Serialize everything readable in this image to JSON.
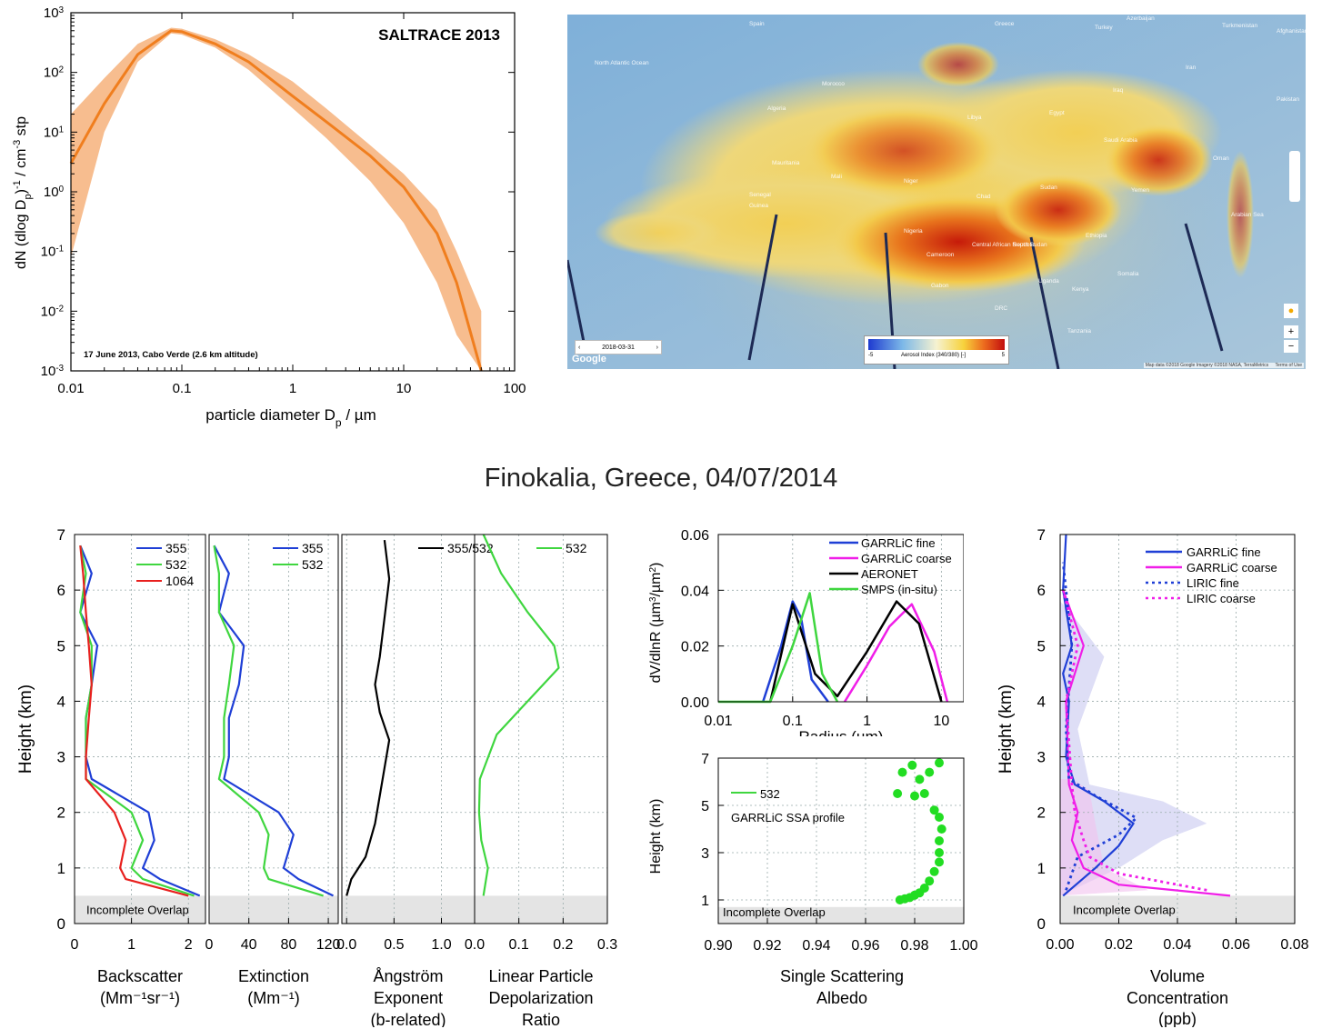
{
  "top_left": {
    "title": "SALTRACE 2013",
    "note": "17 June 2013, Cabo Verde (2.6 km altitude)",
    "ylabel": "dN (dlog D_p)^-1 / cm^-3 stp",
    "xlabel": "particle diameter D_p / µm",
    "xticks": [
      "0.01",
      "0.1",
      "1",
      "10",
      "100"
    ],
    "yticks": [
      "10^3",
      "10^2",
      "10^1",
      "10^0",
      "10^-1",
      "10^-2",
      "10^-3"
    ],
    "colors": {
      "line": "#f07e1e",
      "band": "#f7bd8f"
    }
  },
  "map": {
    "date": "2018-03-31",
    "brand": "Google",
    "legend_title": "Aerosol Index (340/380) [-]",
    "legend_min": "-5",
    "legend_max": "5",
    "attribution": "Map data ©2018 Google Imagery ©2018 NASA, TerraMetrics",
    "terms": "Terms of Use",
    "zoom_in": "+",
    "zoom_out": "−",
    "places": [
      "Spain",
      "Greece",
      "Turkey",
      "Azerbaijan",
      "Turkmenistan",
      "Afghanistan",
      "North Atlantic Ocean",
      "Morocco",
      "Algeria",
      "Libya",
      "Egypt",
      "Iraq",
      "Iran",
      "Pakistan",
      "Saudi Arabia",
      "Mauritania",
      "Mali",
      "Niger",
      "Chad",
      "Sudan",
      "Oman",
      "Yemen",
      "Senegal",
      "Guinea",
      "Nigeria",
      "Ethiopia",
      "Cameroon",
      "Central African Republic",
      "South Sudan",
      "Somalia",
      "Uganda",
      "Kenya",
      "DRC",
      "Tanzania",
      "Gabon",
      "Arabian Sea"
    ]
  },
  "bottom": {
    "title": "Finokalia, Greece, 04/07/2014",
    "height_label": "Height (km)",
    "overlap": "Incomplete Overlap",
    "panels": {
      "backscatter": {
        "label1": "Backscatter",
        "label2": "(Mm⁻¹sr⁻¹)",
        "legend": [
          "355",
          "532",
          "1064"
        ],
        "xticks": [
          "0",
          "1",
          "2"
        ]
      },
      "extinction": {
        "label1": "Extinction",
        "label2": "(Mm⁻¹)",
        "legend": [
          "355",
          "532"
        ],
        "xticks": [
          "0",
          "40",
          "80",
          "120"
        ]
      },
      "angstrom": {
        "label1": "Ångström",
        "label2": "Exponent",
        "label3": "(b-related)",
        "legend": [
          "355/532"
        ],
        "xticks": [
          "0.0",
          "0.5",
          "1.0"
        ]
      },
      "depol": {
        "label1": "Linear Particle",
        "label2": "Depolarization",
        "label3": "Ratio",
        "legend": [
          "532"
        ],
        "xticks": [
          "0.0",
          "0.1",
          "0.2",
          "0.3"
        ]
      }
    },
    "yticks": [
      "0",
      "1",
      "2",
      "3",
      "4",
      "5",
      "6",
      "7"
    ],
    "size_dist": {
      "ylabel": "dV/dlnR (µm³/µm²)",
      "xlabel": "Radius (µm)",
      "legend": [
        "GARRLiC fine",
        "GARRLiC coarse",
        "AERONET",
        "SMPS (in-situ)"
      ],
      "xticks": [
        "0.01",
        "0.1",
        "1",
        "10"
      ],
      "yticks": [
        "0.00",
        "0.02",
        "0.04",
        "0.06"
      ]
    },
    "ssa": {
      "ylabel": "Height (km)",
      "xlabel1": "Single Scattering",
      "xlabel2": "Albedo",
      "legend": "532",
      "note": "GARRLiC SSA profile",
      "xticks": [
        "0.90",
        "0.92",
        "0.94",
        "0.96",
        "0.98",
        "1.00"
      ],
      "yticks": [
        "1",
        "3",
        "5",
        "7"
      ]
    },
    "volume": {
      "xlabel1": "Volume",
      "xlabel2": "Concentration",
      "xlabel3": "(ppb)",
      "legend": [
        "GARRLiC fine",
        "GARRLiC coarse",
        "LIRIC fine",
        "LIRIC coarse"
      ],
      "xticks": [
        "0.00",
        "0.02",
        "0.04",
        "0.06",
        "0.08"
      ]
    },
    "colors": {
      "c355": "#1f3fd6",
      "c532": "#3fd63f",
      "c1064": "#e8201e",
      "black": "#000000",
      "magenta": "#f01ee8",
      "green_dot": "#22dd22"
    }
  },
  "chart_data": [
    {
      "type": "area",
      "title": "SALTRACE 2013",
      "xlabel": "particle diameter D_p / µm",
      "ylabel": "dN (dlog D_p)^-1 / cm^-3 stp",
      "xscale": "log",
      "yscale": "log",
      "xlim": [
        0.01,
        100
      ],
      "ylim": [
        0.001,
        1000
      ],
      "x": [
        0.01,
        0.02,
        0.04,
        0.08,
        0.1,
        0.2,
        0.4,
        1,
        2,
        5,
        10,
        20,
        30,
        50
      ],
      "median": [
        3,
        30,
        200,
        500,
        480,
        300,
        150,
        40,
        15,
        4,
        1.2,
        0.2,
        0.03,
        0.001
      ],
      "band_low": [
        0.08,
        10,
        150,
        450,
        430,
        260,
        110,
        25,
        8,
        1.5,
        0.3,
        0.03,
        0.004,
        0.001
      ],
      "band_high": [
        20,
        80,
        300,
        560,
        540,
        360,
        200,
        70,
        25,
        6,
        2,
        0.5,
        0.1,
        0.01
      ]
    },
    {
      "type": "line",
      "title": "Backscatter",
      "xlim": [
        0,
        2.3
      ],
      "ylim": [
        0,
        7
      ],
      "series": [
        {
          "name": "355",
          "x": [
            2.2,
            1.5,
            1.2,
            1.4,
            1.3,
            0.3,
            0.2,
            0.2,
            0.3,
            0.4,
            0.1,
            0.3,
            0.1
          ],
          "y": [
            0.5,
            0.8,
            1.0,
            1.5,
            2.0,
            2.6,
            3.0,
            3.7,
            4.3,
            5.0,
            5.6,
            6.3,
            6.8
          ]
        },
        {
          "name": "532",
          "x": [
            2.1,
            1.2,
            1.0,
            1.2,
            1.0,
            0.2,
            0.2,
            0.2,
            0.3,
            0.3,
            0.1,
            0.2,
            0.1
          ],
          "y": [
            0.5,
            0.8,
            1.0,
            1.5,
            2.0,
            2.6,
            3.0,
            3.7,
            4.3,
            5.0,
            5.6,
            6.3,
            6.8
          ]
        },
        {
          "name": "1064",
          "x": [
            2.0,
            0.9,
            0.8,
            0.9,
            0.7,
            0.2,
            0.2,
            0.25,
            0.3,
            0.25,
            0.2,
            0.15,
            0.1
          ],
          "y": [
            0.5,
            0.8,
            1.0,
            1.5,
            2.0,
            2.6,
            3.0,
            3.7,
            4.3,
            5.0,
            5.6,
            6.3,
            6.8
          ]
        }
      ]
    },
    {
      "type": "line",
      "title": "Extinction",
      "xlim": [
        0,
        130
      ],
      "ylim": [
        0,
        7
      ],
      "series": [
        {
          "name": "355",
          "x": [
            125,
            90,
            75,
            85,
            70,
            15,
            20,
            20,
            30,
            35,
            10,
            20,
            5
          ],
          "y": [
            0.5,
            0.8,
            1.0,
            1.6,
            2.0,
            2.6,
            3.0,
            3.7,
            4.3,
            5.0,
            5.6,
            6.3,
            6.8
          ]
        },
        {
          "name": "532",
          "x": [
            115,
            60,
            55,
            60,
            50,
            10,
            15,
            15,
            20,
            25,
            10,
            10,
            5
          ],
          "y": [
            0.5,
            0.8,
            1.0,
            1.6,
            2.0,
            2.6,
            3.0,
            3.7,
            4.3,
            5.0,
            5.6,
            6.3,
            6.8
          ]
        }
      ]
    },
    {
      "type": "line",
      "title": "Ångström Exponent (b-related)",
      "xlim": [
        -0.05,
        1.35
      ],
      "ylim": [
        0,
        7
      ],
      "series": [
        {
          "name": "355/532",
          "x": [
            0.0,
            0.05,
            0.2,
            0.3,
            0.35,
            0.4,
            0.45,
            0.35,
            0.3,
            0.35,
            0.4,
            0.45,
            0.4
          ],
          "y": [
            0.5,
            0.8,
            1.2,
            1.8,
            2.3,
            2.8,
            3.3,
            3.8,
            4.3,
            4.8,
            5.5,
            6.2,
            6.9
          ]
        }
      ]
    },
    {
      "type": "line",
      "title": "Linear Particle Depolarization Ratio",
      "xlim": [
        0,
        0.3
      ],
      "ylim": [
        0,
        7
      ],
      "series": [
        {
          "name": "532",
          "x": [
            0.02,
            0.03,
            0.015,
            0.01,
            0.012,
            0.05,
            0.12,
            0.19,
            0.18,
            0.12,
            0.06,
            0.02
          ],
          "y": [
            0.5,
            1.0,
            1.5,
            2.0,
            2.6,
            3.4,
            4.0,
            4.6,
            5.0,
            5.6,
            6.3,
            7.0
          ]
        }
      ]
    },
    {
      "type": "line",
      "title": "",
      "xlabel": "Radius (µm)",
      "ylabel": "dV/dlnR (µm³/µm²)",
      "xscale": "log",
      "xlim": [
        0.01,
        20
      ],
      "ylim": [
        0,
        0.06
      ],
      "series": [
        {
          "name": "GARRLiC fine",
          "x": [
            0.04,
            0.07,
            0.1,
            0.13,
            0.18,
            0.3
          ],
          "y": [
            0.0,
            0.02,
            0.036,
            0.03,
            0.008,
            0.0
          ]
        },
        {
          "name": "GARRLiC coarse",
          "x": [
            0.5,
            1,
            2,
            4,
            8,
            12
          ],
          "y": [
            0.0,
            0.013,
            0.027,
            0.035,
            0.018,
            0.0
          ]
        },
        {
          "name": "AERONET",
          "x": [
            0.05,
            0.1,
            0.2,
            0.4,
            1,
            2.5,
            5,
            10
          ],
          "y": [
            0.0,
            0.035,
            0.01,
            0.002,
            0.018,
            0.036,
            0.028,
            0.0
          ]
        },
        {
          "name": "SMPS (in-situ)",
          "x": [
            0.01,
            0.05,
            0.1,
            0.17,
            0.25,
            0.4
          ],
          "y": [
            0.0,
            0.0,
            0.02,
            0.039,
            0.01,
            0.0
          ]
        }
      ]
    },
    {
      "type": "scatter",
      "title": "",
      "xlabel": "Single Scattering Albedo",
      "ylabel": "Height (km)",
      "xlim": [
        0.9,
        1.0
      ],
      "ylim": [
        0,
        7
      ],
      "series": [
        {
          "name": "532",
          "x": [
            0.974,
            0.976,
            0.978,
            0.98,
            0.982,
            0.984,
            0.986,
            0.988,
            0.99,
            0.99,
            0.99,
            0.991,
            0.99,
            0.988,
            0.98,
            0.984,
            0.973,
            0.982,
            0.99,
            0.986,
            0.979,
            0.975
          ],
          "y": [
            1.0,
            1.05,
            1.1,
            1.2,
            1.3,
            1.5,
            1.8,
            2.2,
            2.6,
            3.0,
            3.5,
            4.0,
            4.5,
            4.8,
            5.4,
            5.5,
            5.5,
            6.1,
            6.8,
            6.4,
            6.7,
            6.4
          ]
        }
      ]
    },
    {
      "type": "line",
      "title": "Volume Concentration (ppb)",
      "xlim": [
        0,
        0.08
      ],
      "ylim": [
        0,
        7
      ],
      "series": [
        {
          "name": "GARRLiC fine",
          "x": [
            0.001,
            0.012,
            0.02,
            0.025,
            0.015,
            0.005,
            0.002,
            0.003,
            0.001,
            0.004,
            0.001,
            0.002
          ],
          "y": [
            0.5,
            1.0,
            1.4,
            1.8,
            2.2,
            2.5,
            3.0,
            4.0,
            4.5,
            5.0,
            6.0,
            7.0
          ]
        },
        {
          "name": "GARRLiC coarse",
          "x": [
            0.058,
            0.02,
            0.008,
            0.004,
            0.006,
            0.003,
            0.002,
            0.008,
            0.001
          ],
          "y": [
            0.5,
            0.7,
            1.0,
            1.5,
            2.0,
            2.5,
            4.0,
            5.0,
            6.0
          ]
        },
        {
          "name": "LIRIC fine",
          "x": [
            0.002,
            0.006,
            0.02,
            0.026,
            0.012,
            0.003,
            0.002,
            0.004,
            0.001
          ],
          "y": [
            0.6,
            1.2,
            1.6,
            1.9,
            2.3,
            2.6,
            3.5,
            5.0,
            6.5
          ]
        },
        {
          "name": "LIRIC coarse",
          "x": [
            0.05,
            0.02,
            0.01,
            0.008,
            0.005,
            0.004,
            0.002,
            0.006,
            0.001
          ],
          "y": [
            0.6,
            0.9,
            1.2,
            1.5,
            2.0,
            2.5,
            4.0,
            5.0,
            6.0
          ]
        }
      ]
    }
  ]
}
